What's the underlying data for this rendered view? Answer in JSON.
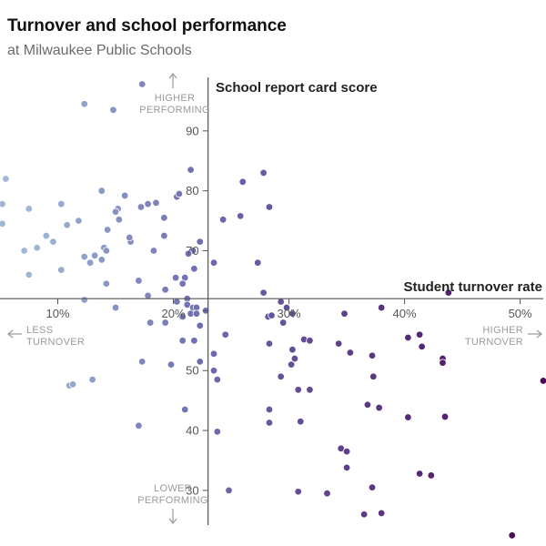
{
  "header": {
    "title": "Turnover and school performance",
    "subtitle": "at Milwaukee Public Schools"
  },
  "annotations": {
    "higher_performing": [
      "HIGHER",
      "PERFORMING"
    ],
    "lower_performing": [
      "LOWER",
      "PERFORMING"
    ],
    "less_turnover": [
      "LESS",
      "TURNOVER"
    ],
    "higher_turnover": [
      "HIGHER",
      "TURNOVER"
    ]
  },
  "chart_data": {
    "type": "scatter",
    "xlabel": "Student turnover rate",
    "ylabel": "School report card score",
    "xlim": [
      5,
      52
    ],
    "ylim": [
      23,
      100
    ],
    "x_origin": 23,
    "y_origin": 62,
    "xticks": [
      10,
      20,
      30,
      40,
      50
    ],
    "xtick_labels": [
      "10%",
      "20%",
      "30%",
      "40%",
      "50%"
    ],
    "yticks": [
      30,
      40,
      50,
      60,
      70,
      80,
      90
    ],
    "ytick_labels": [
      "30",
      "40",
      "50",
      "",
      "70",
      "80",
      "90"
    ],
    "colors": {
      "low": "#9fb7d4",
      "mid": "#6d6bb1",
      "high": "#4b0a55",
      "stroke": "#ffffff",
      "axis": "#555555"
    },
    "grid": false,
    "points": [
      [
        5.5,
        82
      ],
      [
        5.2,
        77.8
      ],
      [
        5.2,
        74.5
      ],
      [
        12.3,
        94.5
      ],
      [
        14.8,
        93.5
      ],
      [
        17.3,
        97.8
      ],
      [
        7.5,
        77
      ],
      [
        10.3,
        77.8
      ],
      [
        9,
        72.5
      ],
      [
        9.6,
        71.5
      ],
      [
        10.8,
        74.3
      ],
      [
        11.8,
        75
      ],
      [
        8.2,
        70.5
      ],
      [
        7.1,
        70
      ],
      [
        7.5,
        66
      ],
      [
        10.3,
        66.8
      ],
      [
        13.8,
        80
      ],
      [
        15.8,
        79.2
      ],
      [
        15.2,
        77
      ],
      [
        15,
        76.5
      ],
      [
        15.3,
        75.2
      ],
      [
        14.3,
        73.5
      ],
      [
        12.3,
        69
      ],
      [
        13.2,
        69.2
      ],
      [
        13.8,
        68.5
      ],
      [
        12.8,
        68
      ],
      [
        14,
        70.5
      ],
      [
        14.2,
        70
      ],
      [
        16.3,
        71.5
      ],
      [
        16.2,
        72.2
      ],
      [
        17.2,
        77.3
      ],
      [
        17.8,
        77.8
      ],
      [
        18.5,
        78
      ],
      [
        19.2,
        75.5
      ],
      [
        19.2,
        72.5
      ],
      [
        20.3,
        79
      ],
      [
        20.5,
        79.5
      ],
      [
        18.3,
        70
      ],
      [
        14.2,
        64.5
      ],
      [
        17,
        65
      ],
      [
        20.2,
        65.5
      ],
      [
        19.3,
        63.5
      ],
      [
        17.8,
        62.5
      ],
      [
        12.3,
        61.8
      ],
      [
        15,
        60.5
      ],
      [
        18,
        58
      ],
      [
        19.3,
        58
      ],
      [
        20.8,
        59
      ],
      [
        20.3,
        61.5
      ],
      [
        21.5,
        83.5
      ],
      [
        21.7,
        70
      ],
      [
        22.3,
        71.5
      ],
      [
        21.3,
        69.5
      ],
      [
        21.8,
        67
      ],
      [
        21,
        65.5
      ],
      [
        20.8,
        64.5
      ],
      [
        21.2,
        62
      ],
      [
        21.2,
        61
      ],
      [
        21.7,
        60.5
      ],
      [
        21.5,
        59.5
      ],
      [
        22,
        60.5
      ],
      [
        22,
        59.5
      ],
      [
        22.8,
        60
      ],
      [
        11,
        47.5
      ],
      [
        11.3,
        47.7
      ],
      [
        13,
        48.5
      ],
      [
        17.3,
        51.5
      ],
      [
        19.8,
        51
      ],
      [
        20.8,
        55
      ],
      [
        17,
        40.8
      ],
      [
        21,
        43.5
      ],
      [
        22.3,
        57.5
      ],
      [
        21.8,
        55
      ],
      [
        22.3,
        51.5
      ],
      [
        23.5,
        50
      ],
      [
        23.8,
        48.5
      ],
      [
        23.5,
        52.8
      ],
      [
        24.5,
        56
      ],
      [
        23.8,
        39.8
      ],
      [
        24.8,
        30
      ],
      [
        26,
        81.5
      ],
      [
        27.8,
        83
      ],
      [
        28.3,
        77.3
      ],
      [
        24.3,
        75.2
      ],
      [
        25.8,
        75.8
      ],
      [
        27.3,
        68
      ],
      [
        23.5,
        68
      ],
      [
        27.8,
        63
      ],
      [
        28.2,
        59
      ],
      [
        28.5,
        59.2
      ],
      [
        29.3,
        61.5
      ],
      [
        29.8,
        60.5
      ],
      [
        30.3,
        59.5
      ],
      [
        28.3,
        54.5
      ],
      [
        29.5,
        58
      ],
      [
        31.3,
        55.2
      ],
      [
        31.8,
        55
      ],
      [
        30.3,
        53.5
      ],
      [
        30.5,
        52
      ],
      [
        30.2,
        51
      ],
      [
        29.3,
        49
      ],
      [
        30.8,
        46.8
      ],
      [
        31.8,
        46.8
      ],
      [
        28.3,
        43.5
      ],
      [
        28.3,
        41.3
      ],
      [
        31,
        41.5
      ],
      [
        30.8,
        29.8
      ],
      [
        34.8,
        59.5
      ],
      [
        34.3,
        54.5
      ],
      [
        35.3,
        53
      ],
      [
        37.2,
        52.5
      ],
      [
        38,
        60.5
      ],
      [
        37.3,
        49
      ],
      [
        36.8,
        44.3
      ],
      [
        37.8,
        43.8
      ],
      [
        34.5,
        37
      ],
      [
        35,
        36.5
      ],
      [
        35,
        33.8
      ],
      [
        33.3,
        29.5
      ],
      [
        37.2,
        30.5
      ],
      [
        36.5,
        26
      ],
      [
        38,
        26.2
      ],
      [
        40.3,
        55.5
      ],
      [
        41.3,
        56
      ],
      [
        41.5,
        54
      ],
      [
        43.3,
        52
      ],
      [
        43.3,
        51.3
      ],
      [
        43.8,
        63
      ],
      [
        40.3,
        42.2
      ],
      [
        43.5,
        42.3
      ],
      [
        41.3,
        32.8
      ],
      [
        42.3,
        32.5
      ],
      [
        49.3,
        22.5
      ],
      [
        52,
        48.3
      ]
    ]
  }
}
